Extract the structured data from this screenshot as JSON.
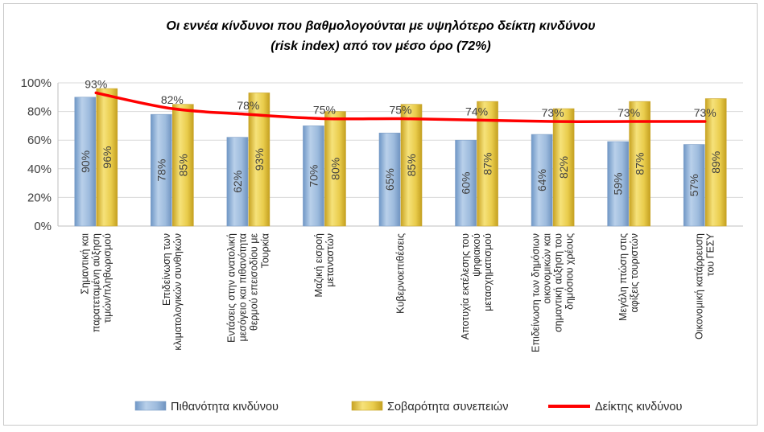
{
  "chart_data": {
    "type": "bar",
    "title_lines": [
      "Οι εννέα κίνδυνοι που βαθμολογούνται με υψηλότερο δείκτη κινδύνου",
      "(risk index) από τον μέσο όρο (72%)"
    ],
    "categories": [
      [
        "Σημαντική και",
        "παρατεταμένη αύξηση",
        "τιμών/πληθωρισμού"
      ],
      [
        "Επιδείνωση των",
        "κλιματολογικών συνθηκών"
      ],
      [
        "Εντάσεις στην ανατολική",
        "μεσόγειο και πιθανότητα",
        "θερμού επεισοδίου με",
        "Τουρκία"
      ],
      [
        "Μαζική εισροή",
        "μεταναστών"
      ],
      [
        "Κυβερνοεπιθέσεις"
      ],
      [
        "Αποτυχία εκτέλεσης του",
        "ψηφιακού",
        "μετασχηματισμού"
      ],
      [
        "Επιδείνωση των δημόσιων",
        "οικονομικών και",
        "σημαντική αύξηση του",
        "δημόσιου χρέους"
      ],
      [
        "Μεγάλη πτώση στις",
        "αφίξεις τουριστών"
      ],
      [
        "Οικονομική κατάρρευση",
        "του ΓΕΣΥ"
      ]
    ],
    "series": [
      {
        "name": "Πιθανότητα κινδύνου",
        "kind": "bar",
        "color": "#93b3d7",
        "values": [
          90,
          78,
          62,
          70,
          65,
          60,
          64,
          59,
          57
        ]
      },
      {
        "name": "Σοβαρότητα συνεπειών",
        "kind": "bar",
        "color": "#e6c840",
        "values": [
          96,
          85,
          93,
          80,
          85,
          87,
          82,
          87,
          89
        ]
      },
      {
        "name": "Δείκτης κινδύνου",
        "kind": "line",
        "color": "#ff0000",
        "values": [
          93,
          82,
          78,
          75,
          75,
          74,
          73,
          73,
          73
        ]
      }
    ],
    "yticks": [
      "100%",
      "80%",
      "60%",
      "40%",
      "20%",
      "0%"
    ],
    "ylim": [
      0,
      100
    ],
    "unit": "%",
    "grid": true,
    "legend": "bottom"
  }
}
